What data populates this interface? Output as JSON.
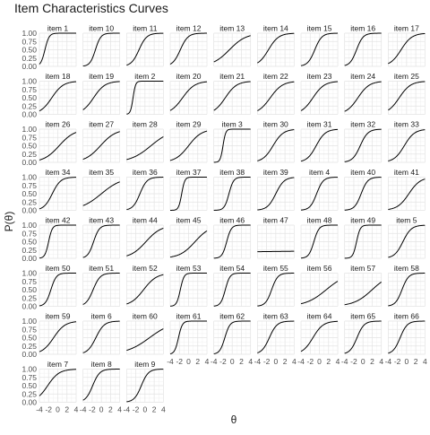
{
  "chart_data": {
    "type": "line",
    "title": "Item Characteristics Curves",
    "xlabel": "θ",
    "ylabel": "P(θ)",
    "xlim": [
      -4,
      4
    ],
    "ylim": [
      0,
      1
    ],
    "x_ticks": [
      -4,
      -2,
      0,
      2,
      4
    ],
    "x_tick_labels": [
      "-4",
      "-2",
      "0",
      "2",
      "4"
    ],
    "y_ticks": [
      0,
      0.25,
      0.5,
      0.75,
      1
    ],
    "y_tick_labels": [
      "0.00",
      "0.25",
      "0.50",
      "0.75",
      "1.00"
    ],
    "grid": true,
    "facet_columns": 9,
    "series": [
      {
        "name": "item 1",
        "a": 2.2,
        "b": -2.8
      },
      {
        "name": "item 10",
        "a": 1.7,
        "b": -1.3
      },
      {
        "name": "item 11",
        "a": 1.2,
        "b": -1.3
      },
      {
        "name": "item 12",
        "a": 1.2,
        "b": -1.8
      },
      {
        "name": "item 13",
        "a": 0.55,
        "b": -0.6
      },
      {
        "name": "item 14",
        "a": 0.9,
        "b": -1.6
      },
      {
        "name": "item 15",
        "a": 1.3,
        "b": -1.0
      },
      {
        "name": "item 16",
        "a": 1.4,
        "b": -1.4
      },
      {
        "name": "item 17",
        "a": 0.85,
        "b": -1.2
      },
      {
        "name": "item 18",
        "a": 0.8,
        "b": -1.3
      },
      {
        "name": "item 19",
        "a": 0.8,
        "b": -1.7
      },
      {
        "name": "item 2",
        "a": 3.6,
        "b": -2.6
      },
      {
        "name": "item 20",
        "a": 0.75,
        "b": -1.3
      },
      {
        "name": "item 21",
        "a": 0.8,
        "b": -1.5
      },
      {
        "name": "item 22",
        "a": 0.75,
        "b": -1.2
      },
      {
        "name": "item 23",
        "a": 0.8,
        "b": -1.4
      },
      {
        "name": "item 24",
        "a": 0.8,
        "b": -1.1
      },
      {
        "name": "item 25",
        "a": 0.8,
        "b": -1.6
      },
      {
        "name": "item 26",
        "a": 0.6,
        "b": 0.3
      },
      {
        "name": "item 27",
        "a": 0.6,
        "b": -0.2
      },
      {
        "name": "item 28",
        "a": 0.45,
        "b": 1.3
      },
      {
        "name": "item 29",
        "a": 0.7,
        "b": 0.0
      },
      {
        "name": "item 3",
        "a": 3.4,
        "b": -2.0
      },
      {
        "name": "item 30",
        "a": 0.9,
        "b": -0.6
      },
      {
        "name": "item 31",
        "a": 1.0,
        "b": -0.7
      },
      {
        "name": "item 32",
        "a": 1.2,
        "b": -0.6
      },
      {
        "name": "item 33",
        "a": 0.9,
        "b": -0.5
      },
      {
        "name": "item 34",
        "a": 1.1,
        "b": -1.2
      },
      {
        "name": "item 35",
        "a": 0.45,
        "b": 0.0
      },
      {
        "name": "item 36",
        "a": 1.3,
        "b": -1.1
      },
      {
        "name": "item 37",
        "a": 3.0,
        "b": -1.5
      },
      {
        "name": "item 38",
        "a": 2.0,
        "b": -0.7
      },
      {
        "name": "item 39",
        "a": 1.1,
        "b": 0.0
      },
      {
        "name": "item 4",
        "a": 1.4,
        "b": -0.6
      },
      {
        "name": "item 40",
        "a": 1.4,
        "b": -0.4
      },
      {
        "name": "item 41",
        "a": 0.8,
        "b": 0.5
      },
      {
        "name": "item 42",
        "a": 2.5,
        "b": -2.0
      },
      {
        "name": "item 43",
        "a": 1.6,
        "b": -1.7
      },
      {
        "name": "item 44",
        "a": 0.6,
        "b": 0.2
      },
      {
        "name": "item 45",
        "a": 0.6,
        "b": 1.4
      },
      {
        "name": "item 46",
        "a": 2.0,
        "b": -1.2
      },
      {
        "name": "item 47",
        "a": 0.01,
        "b": 135.0
      },
      {
        "name": "item 48",
        "a": 1.8,
        "b": -1.2
      },
      {
        "name": "item 49",
        "a": 2.5,
        "b": -1.4
      },
      {
        "name": "item 5",
        "a": 1.1,
        "b": -0.8
      },
      {
        "name": "item 50",
        "a": 1.7,
        "b": -1.5
      },
      {
        "name": "item 51",
        "a": 1.3,
        "b": -1.8
      },
      {
        "name": "item 52",
        "a": 0.7,
        "b": -0.3
      },
      {
        "name": "item 53",
        "a": 2.5,
        "b": -1.8
      },
      {
        "name": "item 54",
        "a": 2.0,
        "b": -1.5
      },
      {
        "name": "item 55",
        "a": 1.5,
        "b": -0.9
      },
      {
        "name": "item 56",
        "a": 0.45,
        "b": 1.5
      },
      {
        "name": "item 57",
        "a": 0.5,
        "b": 2.0
      },
      {
        "name": "item 58",
        "a": 1.4,
        "b": -1.0
      },
      {
        "name": "item 59",
        "a": 0.8,
        "b": -0.9
      },
      {
        "name": "item 6",
        "a": 1.1,
        "b": -1.2
      },
      {
        "name": "item 60",
        "a": 0.4,
        "b": 1.0
      },
      {
        "name": "item 61",
        "a": 2.4,
        "b": -2.2
      },
      {
        "name": "item 62",
        "a": 1.8,
        "b": -1.6
      },
      {
        "name": "item 63",
        "a": 1.2,
        "b": -1.4
      },
      {
        "name": "item 64",
        "a": 0.9,
        "b": -1.4
      },
      {
        "name": "item 65",
        "a": 1.3,
        "b": -1.3
      },
      {
        "name": "item 66",
        "a": 1.3,
        "b": -1.4
      },
      {
        "name": "item 7",
        "a": 0.8,
        "b": -2.2
      },
      {
        "name": "item 8",
        "a": 1.3,
        "b": -1.9
      },
      {
        "name": "item 9",
        "a": 1.3,
        "b": -0.8
      }
    ]
  }
}
